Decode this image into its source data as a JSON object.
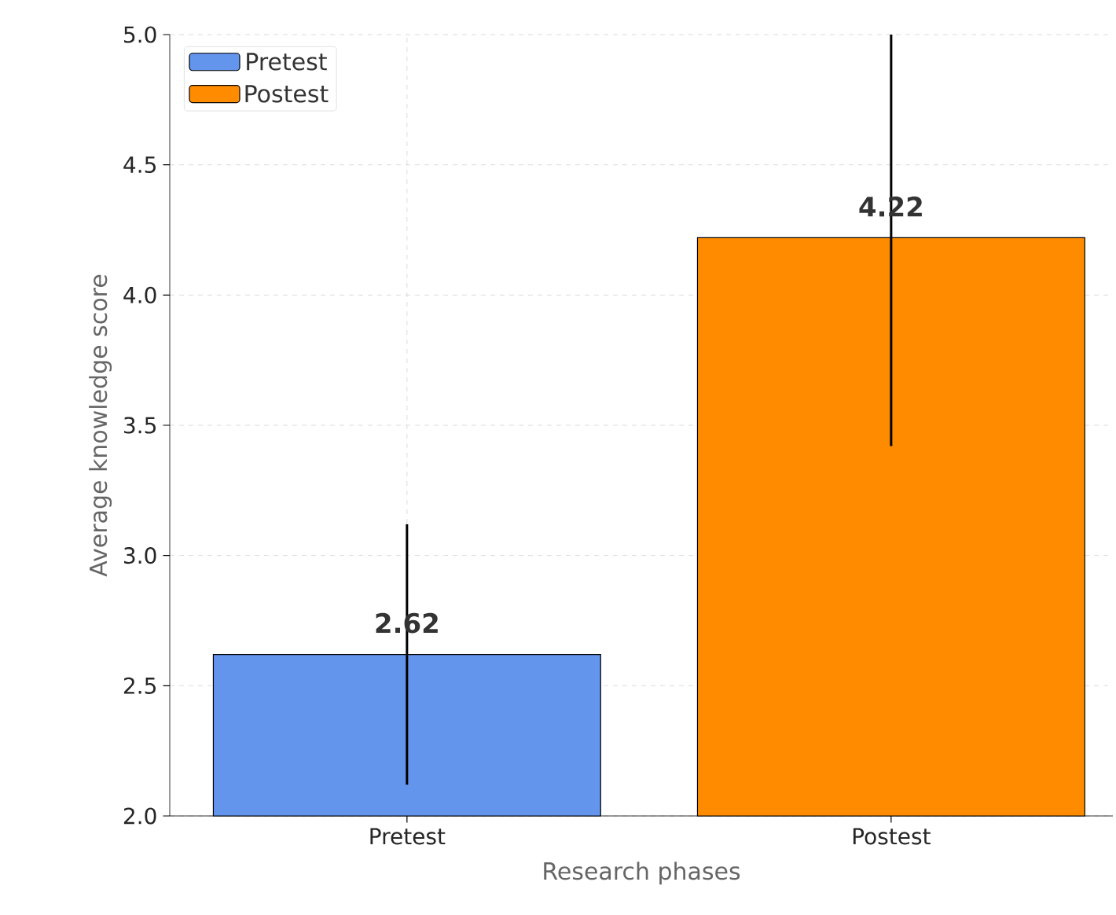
{
  "chart_data": {
    "type": "bar",
    "xlabel": "Research phases",
    "ylabel": "Average knowledge score",
    "categories": [
      "Pretest",
      "Postest"
    ],
    "series": [
      {
        "name": "Pretest",
        "color": "#6495ed",
        "values": [
          2.62,
          null
        ],
        "errors": [
          0.5,
          null
        ]
      },
      {
        "name": "Postest",
        "color": "#ff8c00",
        "values": [
          null,
          4.22
        ],
        "errors": [
          null,
          [
            3.42,
            5.0
          ]
        ]
      }
    ],
    "ylim": [
      2.0,
      5.0
    ],
    "yticks": [
      {
        "value": 2.0,
        "label": "2.0"
      },
      {
        "value": 2.5,
        "label": "2.5"
      },
      {
        "value": 3.0,
        "label": "3.0"
      },
      {
        "value": 3.5,
        "label": "3.5"
      },
      {
        "value": 4.0,
        "label": "4.0"
      },
      {
        "value": 4.5,
        "label": "4.5"
      },
      {
        "value": 5.0,
        "label": "5.0"
      }
    ],
    "grid": true,
    "legend": "top left",
    "data_labels": true
  }
}
